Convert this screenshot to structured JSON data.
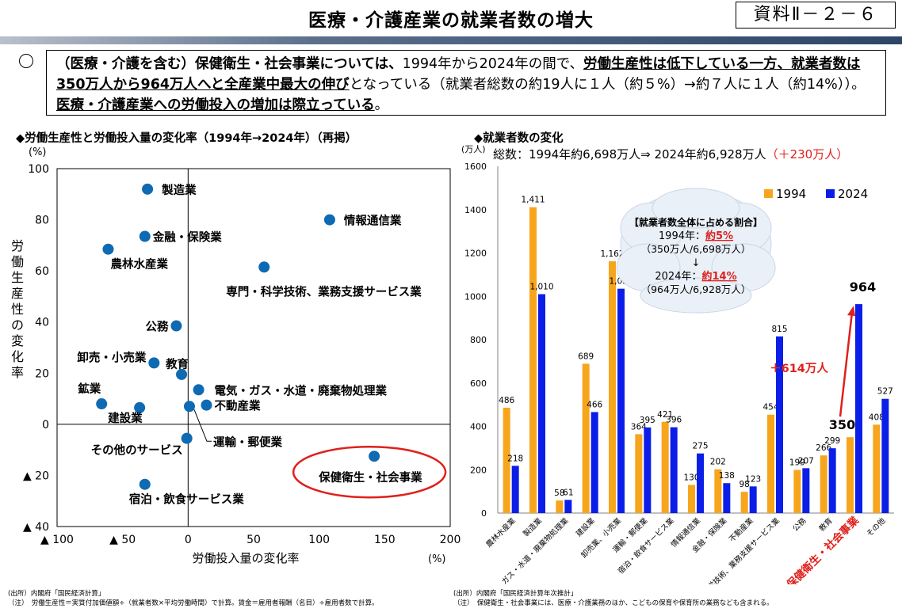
{
  "header": {
    "title": "医療・介護産業の就業者数の増大",
    "doc_ref": "資料Ⅱ－２－６"
  },
  "summary": {
    "bullet": "○",
    "part1": "（医療・介護を含む）保健衛生・社会事業については、",
    "part2": "1994年から2024年の間で、",
    "part3": "労働生産性は低下している一方、就業者数は350万人から964万人へと全産業中最大の伸び",
    "part4": "となっている（就業者総数の約19人に１人（約５%）→約７人に１人（約14%））。",
    "part5": "医療・介護産業への労働投入の増加は際立っている",
    "part6": "。"
  },
  "left_chart_heading": "◆労働生産性と労働投入量の変化率（1994年→2024年）（再掲）",
  "right_chart_heading": "◆就業者数の変化",
  "colors": {
    "dot": "#0e6ab2",
    "bar_1994": "#f7a51c",
    "bar_2024": "#0b1ee8",
    "highlight": "#e0201b"
  },
  "chart_data": [
    {
      "type": "scatter",
      "title": "",
      "xlabel": "労働投入量の変化率",
      "ylabel": "労働生産性の変化率",
      "x_unit": "(%)",
      "y_unit": "(%)",
      "xlim": [
        -100,
        200
      ],
      "ylim": [
        -40,
        100
      ],
      "x_ticks": [
        -100,
        -50,
        0,
        50,
        100,
        150,
        200
      ],
      "y_ticks": [
        100,
        80,
        60,
        40,
        20,
        0,
        -20,
        -40
      ],
      "x_tick_labels": [
        "▲ 100",
        "▲ 50",
        "0",
        "50",
        "100",
        "150",
        "200"
      ],
      "y_tick_labels": [
        "100",
        "80",
        "60",
        "40",
        "20",
        "0",
        "▲ 20",
        "▲ 40"
      ],
      "points": [
        {
          "label": "製造業",
          "x": -31,
          "y": 92
        },
        {
          "label": "情報通信業",
          "x": 108,
          "y": 80
        },
        {
          "label": "金融・保険業",
          "x": -33,
          "y": 73.5
        },
        {
          "label": "農林水産業",
          "x": -61,
          "y": 68.5
        },
        {
          "label": "専門・科学技術、業務支援サービス業",
          "x": 58,
          "y": 61.5
        },
        {
          "label": "公務",
          "x": -9,
          "y": 38.5
        },
        {
          "label": "卸売・小売業",
          "x": -26,
          "y": 24
        },
        {
          "label": "教育",
          "x": -5,
          "y": 19.5
        },
        {
          "label": "電気・ガス・水道・廃棄物処理業",
          "x": 8,
          "y": 13.5
        },
        {
          "label": "鉱業",
          "x": -66,
          "y": 8
        },
        {
          "label": "建設業",
          "x": -37,
          "y": 6.5
        },
        {
          "label": "不動産業",
          "x": 14,
          "y": 7.5
        },
        {
          "label": "運輸・郵便業",
          "x": 1,
          "y": 7
        },
        {
          "label": "その他のサービス",
          "x": -1,
          "y": -5.5
        },
        {
          "label": "保健衛生・社会事業",
          "x": 142,
          "y": -12.5
        },
        {
          "label": "宿泊・飲食サービス業",
          "x": -33,
          "y": -23.5
        }
      ]
    },
    {
      "type": "bar",
      "title": "",
      "y_unit": "(万人)",
      "total_text": "総数：1994年約6,698万人⇒ 2024年約6,928万人",
      "total_change": "（＋230万人）",
      "ylim": [
        0,
        1600
      ],
      "y_ticks": [
        0,
        200,
        400,
        600,
        800,
        1000,
        1200,
        1400,
        1600
      ],
      "legend_position": "top-right",
      "categories": [
        "農林水産業",
        "製造業",
        "電気・ガス・水道・廃棄物処理業",
        "建設業",
        "卸売業、小売業",
        "運輸・郵便業",
        "宿泊・飲食サービス業",
        "情報通信業",
        "金融・保険業",
        "不動産業",
        "専門・科学技術、業務支援サービス業",
        "公務",
        "教育",
        "保健衛生・社会事業",
        "その他"
      ],
      "series": [
        {
          "name": "1994",
          "values": [
            486,
            1411,
            58,
            689,
            1162,
            364,
            421,
            130,
            202,
            98,
            454,
            199,
            266,
            350,
            408
          ],
          "labels": [
            "486",
            "1,411",
            "58",
            "689",
            "1,162",
            "364",
            "421",
            "130",
            "202",
            "98",
            "454",
            "199",
            "266",
            "350",
            "408"
          ]
        },
        {
          "name": "2024",
          "values": [
            218,
            1010,
            61,
            466,
            1035,
            395,
            396,
            275,
            138,
            123,
            815,
            207,
            299,
            964,
            527
          ],
          "labels": [
            "218",
            "1,010",
            "61",
            "466",
            "1,035",
            "395",
            "396",
            "275",
            "138",
            "123",
            "815",
            "207",
            "299",
            "964",
            "527"
          ]
        }
      ],
      "annotations": {
        "increase_label": "＋614万人",
        "share_title": "【就業者数全体に占める割合】",
        "share_1994_prefix": "1994年：",
        "share_1994_value": "約5%",
        "share_1994_detail": "（350万人/6,698万人）",
        "share_arrow": "↓",
        "share_2024_prefix": "2024年：",
        "share_2024_value": "約14%",
        "share_2024_detail": "（964万人/6,928万人）"
      }
    }
  ],
  "footnotes_left": {
    "source": "(出所）内閣府「国民経済計算」",
    "note": "（注）　労働生産性＝実質付加価値額÷（就業者数×平均労働時間）で計算。賃金＝雇用者報酬（名目）÷雇用者数で計算。"
  },
  "footnotes_right": {
    "source": "(出所）内閣府「国民経済計算年次推計」",
    "note": "（注）　保健衛生・社会事業には、医療・介護業務のほか、こどもの保育や保育所の業務なども含まれる。"
  }
}
